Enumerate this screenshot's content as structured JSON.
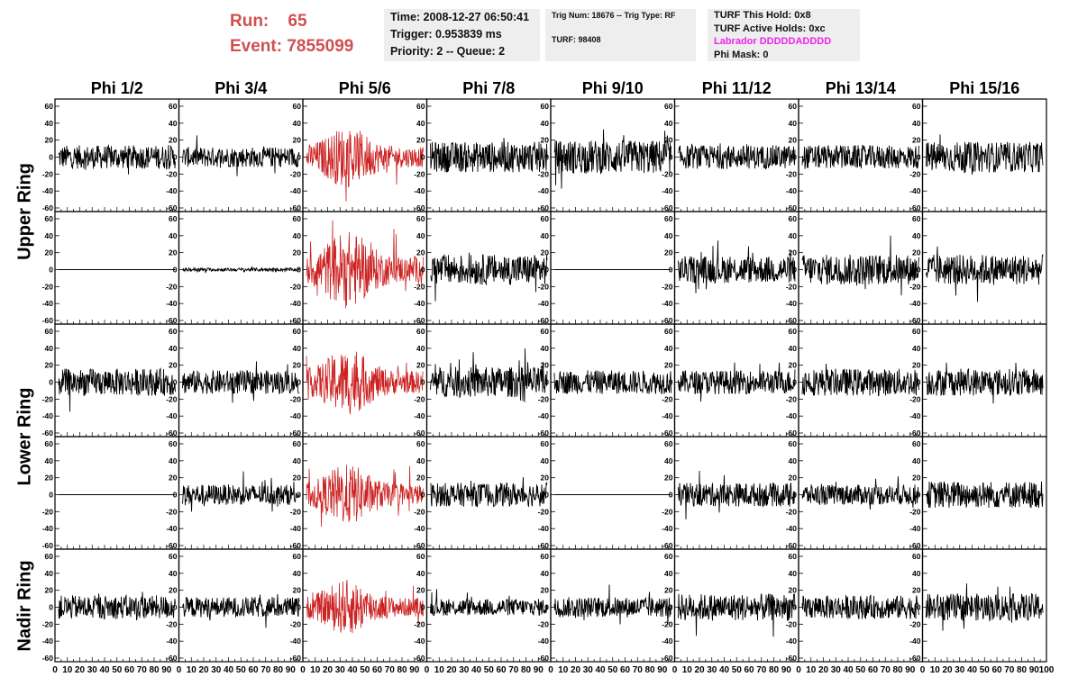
{
  "header": {
    "run_label": "Run:",
    "run_value": "65",
    "event_label": "Event:",
    "event_value": "7855099"
  },
  "info_box_1": {
    "time": "Time: 2008-12-27 06:50:41",
    "trigger": "Trigger: 0.953839 ms",
    "priority": "Priority: 2 -- Queue: 2"
  },
  "info_box_2": {
    "trig": "Trig Num: 18676 -- Trig Type: RF",
    "turf": "TURF: 98408"
  },
  "info_box_3": {
    "hold": "TURF This Hold: 0x8",
    "active": "TURF Active Holds: 0xc",
    "labrador": "Labrador DDDDDADDDD",
    "phimask": "Phi Mask: 0"
  },
  "columns": [
    "Phi 1/2",
    "Phi 3/4",
    "Phi 5/6",
    "Phi 7/8",
    "Phi 9/10",
    "Phi 11/12",
    "Phi 13/14",
    "Phi 15/16"
  ],
  "rows": [
    "Upper Ring",
    "Lower Ring",
    "Nadir Ring"
  ],
  "colors": {
    "header_red": "#d14f4f",
    "trace": "#000000",
    "highlight_trace": "#cc2222",
    "labrador": "#ee22ee",
    "box_bg": "#eeeeee"
  },
  "chart_data": {
    "type": "line",
    "description_axes": "grid of waveform panels, 5 panel rows x 8 phi columns",
    "ylim": [
      -60,
      60
    ],
    "xlim": [
      0,
      100
    ],
    "yticks": [
      -60,
      -40,
      -20,
      0,
      20,
      40,
      60
    ],
    "xticks_per_panel": [
      0,
      10,
      20,
      30,
      40,
      50,
      60,
      70,
      80,
      90,
      100
    ],
    "xtick_labels": [
      "0",
      "10",
      "20",
      "30",
      "40",
      "50",
      "60",
      "70",
      "80",
      "90",
      "100"
    ],
    "panel_rows": [
      {
        "ring": "Upper Ring",
        "panels": [
          {
            "col": 0,
            "amp": 14,
            "flat": false,
            "red": false
          },
          {
            "col": 1,
            "amp": 12,
            "flat": false,
            "red": false
          },
          {
            "col": 2,
            "amp": 22,
            "flat": false,
            "red": true
          },
          {
            "col": 3,
            "amp": 18,
            "flat": false,
            "red": false
          },
          {
            "col": 4,
            "amp": 20,
            "flat": false,
            "red": false
          },
          {
            "col": 5,
            "amp": 14,
            "flat": false,
            "red": false
          },
          {
            "col": 6,
            "amp": 14,
            "flat": false,
            "red": false
          },
          {
            "col": 7,
            "amp": 18,
            "flat": false,
            "red": false
          }
        ]
      },
      {
        "ring": "Upper Ring",
        "panels": [
          {
            "col": 0,
            "amp": 0,
            "flat": true,
            "red": false
          },
          {
            "col": 1,
            "amp": 2,
            "flat": false,
            "red": false
          },
          {
            "col": 2,
            "amp": 28,
            "flat": false,
            "red": true
          },
          {
            "col": 3,
            "amp": 18,
            "flat": false,
            "red": false
          },
          {
            "col": 4,
            "amp": 0,
            "flat": true,
            "red": false
          },
          {
            "col": 5,
            "amp": 16,
            "flat": false,
            "red": false
          },
          {
            "col": 6,
            "amp": 18,
            "flat": false,
            "red": false
          },
          {
            "col": 7,
            "amp": 18,
            "flat": false,
            "red": false
          }
        ]
      },
      {
        "ring": "Lower Ring",
        "panels": [
          {
            "col": 0,
            "amp": 16,
            "flat": false,
            "red": false
          },
          {
            "col": 1,
            "amp": 14,
            "flat": false,
            "red": false
          },
          {
            "col": 2,
            "amp": 24,
            "flat": false,
            "red": true
          },
          {
            "col": 3,
            "amp": 18,
            "flat": false,
            "red": false
          },
          {
            "col": 4,
            "amp": 14,
            "flat": false,
            "red": false
          },
          {
            "col": 5,
            "amp": 14,
            "flat": false,
            "red": false
          },
          {
            "col": 6,
            "amp": 16,
            "flat": false,
            "red": false
          },
          {
            "col": 7,
            "amp": 16,
            "flat": false,
            "red": false
          }
        ]
      },
      {
        "ring": "Lower Ring",
        "panels": [
          {
            "col": 0,
            "amp": 0,
            "flat": true,
            "red": false
          },
          {
            "col": 1,
            "amp": 12,
            "flat": false,
            "red": false
          },
          {
            "col": 2,
            "amp": 22,
            "flat": false,
            "red": true
          },
          {
            "col": 3,
            "amp": 14,
            "flat": false,
            "red": false
          },
          {
            "col": 4,
            "amp": 0,
            "flat": true,
            "red": false
          },
          {
            "col": 5,
            "amp": 14,
            "flat": false,
            "red": false
          },
          {
            "col": 6,
            "amp": 12,
            "flat": false,
            "red": false
          },
          {
            "col": 7,
            "amp": 16,
            "flat": false,
            "red": false
          }
        ]
      },
      {
        "ring": "Nadir Ring",
        "panels": [
          {
            "col": 0,
            "amp": 14,
            "flat": false,
            "red": false
          },
          {
            "col": 1,
            "amp": 12,
            "flat": false,
            "red": false
          },
          {
            "col": 2,
            "amp": 20,
            "flat": false,
            "red": true
          },
          {
            "col": 3,
            "amp": 10,
            "flat": false,
            "red": false
          },
          {
            "col": 4,
            "amp": 12,
            "flat": false,
            "red": false
          },
          {
            "col": 5,
            "amp": 16,
            "flat": false,
            "red": false
          },
          {
            "col": 6,
            "amp": 14,
            "flat": false,
            "red": false
          },
          {
            "col": 7,
            "amp": 16,
            "flat": false,
            "red": false
          }
        ]
      }
    ]
  }
}
